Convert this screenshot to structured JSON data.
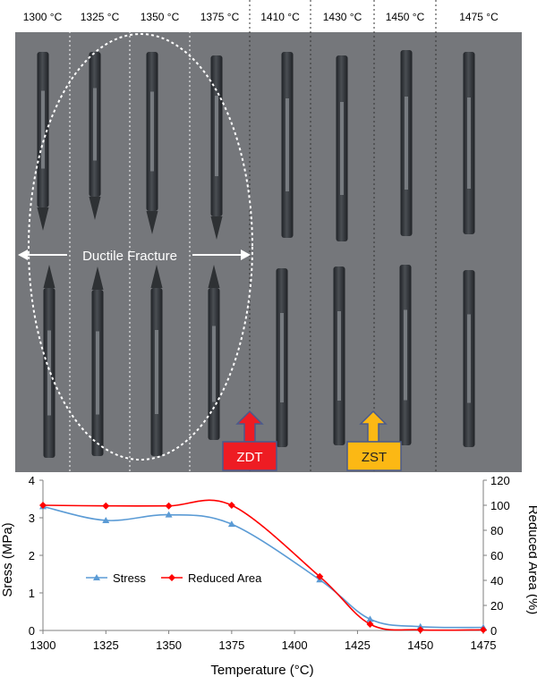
{
  "photo": {
    "temperature_labels": [
      "1300 °C",
      "1325 °C",
      "1350 °C",
      "1375 °C",
      "1410 °C",
      "1430 °C",
      "1450 °C",
      "1475 °C"
    ],
    "ductile_label": "Ductile Fracture",
    "zdt_label": "ZDT",
    "zst_label": "ZST",
    "colors": {
      "header": "#ffffff",
      "background": "#75777b",
      "specimen": "#2e3134",
      "zdt_arrow": "#ee1c23",
      "zst_arrow": "#fcb814",
      "arrow_border": "#4a5a8c"
    }
  },
  "chart_data": {
    "type": "line",
    "xlabel": "Temperature (°C)",
    "ylabel": "Sress (MPa)",
    "y2label": "Reduced Area (%)",
    "xlim": [
      1300,
      1475
    ],
    "ylim": [
      0,
      4
    ],
    "y2lim": [
      0,
      120
    ],
    "x_ticks": [
      "1300",
      "1325",
      "1350",
      "1375",
      "1400",
      "1425",
      "1450",
      "1475"
    ],
    "y_ticks": [
      "0",
      "1",
      "2",
      "3",
      "4"
    ],
    "y2_ticks": [
      "0",
      "20",
      "40",
      "60",
      "80",
      "100",
      "120"
    ],
    "grid": false,
    "legend_position": "bottom-left",
    "series": [
      {
        "name": "Stress",
        "axis": "left",
        "color": "#5b9bd5",
        "marker": "triangle",
        "x": [
          1300,
          1325,
          1350,
          1375,
          1410,
          1430,
          1450,
          1475
        ],
        "values": [
          3.3,
          2.93,
          3.08,
          2.83,
          1.35,
          0.3,
          0.1,
          0.08
        ]
      },
      {
        "name": "Reduced Area",
        "axis": "right",
        "color": "#ff0000",
        "marker": "diamond",
        "x": [
          1300,
          1325,
          1350,
          1375,
          1410,
          1430,
          1450,
          1475
        ],
        "values": [
          100,
          99.5,
          99.5,
          100,
          43,
          5,
          0.5,
          0.5
        ]
      }
    ]
  }
}
